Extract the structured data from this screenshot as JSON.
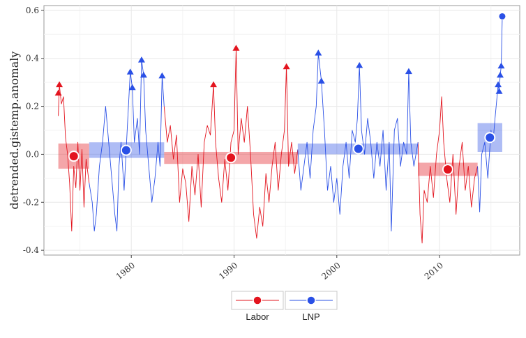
{
  "chart_data": {
    "type": "line",
    "title": "",
    "xlabel": "",
    "ylabel": "detrended.gistemp.anomaly",
    "xlim": [
      1971.5,
      2017.8
    ],
    "ylim": [
      -0.42,
      0.62
    ],
    "x_ticks": [
      1980,
      1990,
      2000,
      2010
    ],
    "x_tick_labels": [
      "1980",
      "1990",
      "2000",
      "2010"
    ],
    "y_ticks": [
      -0.4,
      -0.2,
      0.0,
      0.2,
      0.4,
      0.6
    ],
    "y_tick_labels": [
      "-0.4",
      "-0.2",
      "0.0",
      "0.2",
      "0.4",
      "0.6"
    ],
    "grid": true,
    "legend_position": "bottom",
    "legend": [
      {
        "label": "Labor",
        "color": "#e3141e"
      },
      {
        "label": "LNP",
        "color": "#2a50e6"
      }
    ],
    "periods": [
      {
        "party": "Labor",
        "start": 1972.9,
        "end": 1975.9,
        "mean": -0.008,
        "mean_x": 1974.4,
        "band": [
          -0.06,
          0.045
        ]
      },
      {
        "party": "LNP",
        "start": 1975.9,
        "end": 1983.2,
        "mean": 0.017,
        "mean_x": 1979.5,
        "band": [
          -0.015,
          0.05
        ]
      },
      {
        "party": "Labor",
        "start": 1983.2,
        "end": 1996.2,
        "mean": -0.014,
        "mean_x": 1989.7,
        "band": [
          -0.04,
          0.01
        ]
      },
      {
        "party": "LNP",
        "start": 1996.2,
        "end": 2007.9,
        "mean": 0.023,
        "mean_x": 2002.1,
        "band": [
          0.0,
          0.045
        ]
      },
      {
        "party": "Labor",
        "start": 2007.9,
        "end": 2013.7,
        "mean": -0.063,
        "mean_x": 2010.8,
        "band": [
          -0.09,
          -0.035
        ]
      },
      {
        "party": "LNP",
        "start": 2013.7,
        "end": 2016.1,
        "mean": 0.07,
        "mean_x": 2014.9,
        "band": [
          0.01,
          0.13
        ]
      }
    ],
    "peaks": [
      {
        "party": "Labor",
        "x": 1973.0,
        "y": 0.29
      },
      {
        "party": "Labor",
        "x": 1972.9,
        "y": 0.255
      },
      {
        "party": "LNP",
        "x": 1979.9,
        "y": 0.343
      },
      {
        "party": "LNP",
        "x": 1980.1,
        "y": 0.278
      },
      {
        "party": "LNP",
        "x": 1981.0,
        "y": 0.393
      },
      {
        "party": "LNP",
        "x": 1981.2,
        "y": 0.33
      },
      {
        "party": "LNP",
        "x": 1983.0,
        "y": 0.327
      },
      {
        "party": "Labor",
        "x": 1988.0,
        "y": 0.29
      },
      {
        "party": "Labor",
        "x": 1990.2,
        "y": 0.442
      },
      {
        "party": "Labor",
        "x": 1995.1,
        "y": 0.365
      },
      {
        "party": "LNP",
        "x": 1998.2,
        "y": 0.422
      },
      {
        "party": "LNP",
        "x": 1998.5,
        "y": 0.305
      },
      {
        "party": "LNP",
        "x": 2002.2,
        "y": 0.37
      },
      {
        "party": "LNP",
        "x": 2007.0,
        "y": 0.345
      },
      {
        "party": "LNP",
        "x": 2015.7,
        "y": 0.29
      },
      {
        "party": "LNP",
        "x": 2015.8,
        "y": 0.262
      },
      {
        "party": "LNP",
        "x": 2015.9,
        "y": 0.33
      },
      {
        "party": "LNP",
        "x": 2016.0,
        "y": 0.368
      },
      {
        "party": "LNP",
        "x": 2016.1,
        "y": 0.575
      }
    ],
    "series": [
      {
        "name": "Labor",
        "color": "#e3141e",
        "segments": [
          [
            [
              1972.9,
              0.16
            ],
            [
              1973.0,
              0.29
            ],
            [
              1973.2,
              0.21
            ],
            [
              1973.4,
              0.24
            ],
            [
              1973.6,
              0.07
            ],
            [
              1973.8,
              0.0
            ],
            [
              1974.0,
              -0.12
            ],
            [
              1974.2,
              -0.32
            ],
            [
              1974.4,
              -0.05
            ],
            [
              1974.6,
              -0.14
            ],
            [
              1974.8,
              0.05
            ],
            [
              1975.0,
              -0.15
            ],
            [
              1975.2,
              0.02
            ],
            [
              1975.4,
              -0.22
            ],
            [
              1975.6,
              -0.02
            ],
            [
              1975.9,
              -0.12
            ]
          ],
          [
            [
              1983.2,
              0.2
            ],
            [
              1983.5,
              0.05
            ],
            [
              1983.8,
              0.12
            ],
            [
              1984.1,
              -0.02
            ],
            [
              1984.4,
              0.08
            ],
            [
              1984.7,
              -0.2
            ],
            [
              1985.0,
              -0.06
            ],
            [
              1985.3,
              -0.12
            ],
            [
              1985.6,
              -0.28
            ],
            [
              1985.9,
              -0.05
            ],
            [
              1986.2,
              -0.17
            ],
            [
              1986.5,
              0.0
            ],
            [
              1986.8,
              -0.22
            ],
            [
              1987.1,
              0.05
            ],
            [
              1987.4,
              0.12
            ],
            [
              1987.7,
              0.08
            ],
            [
              1988.0,
              0.29
            ],
            [
              1988.2,
              0.05
            ],
            [
              1988.5,
              -0.1
            ],
            [
              1988.8,
              -0.2
            ],
            [
              1989.1,
              -0.02
            ],
            [
              1989.4,
              -0.15
            ],
            [
              1989.7,
              0.05
            ],
            [
              1990.0,
              0.1
            ],
            [
              1990.2,
              0.442
            ],
            [
              1990.4,
              0.0
            ],
            [
              1990.7,
              0.15
            ],
            [
              1991.0,
              0.05
            ],
            [
              1991.3,
              0.2
            ],
            [
              1991.6,
              0.0
            ],
            [
              1991.9,
              -0.25
            ],
            [
              1992.2,
              -0.35
            ],
            [
              1992.5,
              -0.22
            ],
            [
              1992.8,
              -0.3
            ],
            [
              1993.1,
              -0.08
            ],
            [
              1993.4,
              -0.2
            ],
            [
              1993.7,
              -0.05
            ],
            [
              1994.0,
              0.05
            ],
            [
              1994.3,
              -0.15
            ],
            [
              1994.6,
              0.0
            ],
            [
              1994.9,
              0.1
            ],
            [
              1995.1,
              0.365
            ],
            [
              1995.3,
              -0.05
            ],
            [
              1995.6,
              0.05
            ],
            [
              1995.9,
              -0.08
            ],
            [
              1996.2,
              0.02
            ]
          ],
          [
            [
              2007.9,
              0.05
            ],
            [
              2008.1,
              -0.25
            ],
            [
              2008.3,
              -0.37
            ],
            [
              2008.5,
              -0.15
            ],
            [
              2008.8,
              -0.2
            ],
            [
              2009.1,
              -0.05
            ],
            [
              2009.4,
              -0.18
            ],
            [
              2009.7,
              0.0
            ],
            [
              2010.0,
              0.1
            ],
            [
              2010.2,
              0.24
            ],
            [
              2010.4,
              0.05
            ],
            [
              2010.7,
              -0.1
            ],
            [
              2011.0,
              -0.2
            ],
            [
              2011.3,
              0.0
            ],
            [
              2011.6,
              -0.25
            ],
            [
              2011.9,
              -0.05
            ],
            [
              2012.2,
              0.05
            ],
            [
              2012.5,
              -0.15
            ],
            [
              2012.8,
              -0.05
            ],
            [
              2013.1,
              -0.22
            ],
            [
              2013.4,
              -0.1
            ],
            [
              2013.7,
              -0.05
            ]
          ]
        ]
      },
      {
        "name": "LNP",
        "color": "#2a50e6",
        "segments": [
          [
            [
              1975.9,
              -0.12
            ],
            [
              1976.2,
              -0.2
            ],
            [
              1976.4,
              -0.32
            ],
            [
              1976.6,
              -0.25
            ],
            [
              1976.9,
              -0.05
            ],
            [
              1977.2,
              0.05
            ],
            [
              1977.5,
              0.2
            ],
            [
              1977.8,
              0.05
            ],
            [
              1978.1,
              -0.1
            ],
            [
              1978.4,
              -0.25
            ],
            [
              1978.6,
              -0.32
            ],
            [
              1978.8,
              -0.05
            ],
            [
              1979.0,
              0.05
            ],
            [
              1979.3,
              -0.15
            ],
            [
              1979.6,
              0.1
            ],
            [
              1979.9,
              0.343
            ],
            [
              1980.1,
              0.278
            ],
            [
              1980.3,
              0.05
            ],
            [
              1980.6,
              0.15
            ],
            [
              1980.8,
              0.0
            ],
            [
              1981.0,
              0.393
            ],
            [
              1981.2,
              0.33
            ],
            [
              1981.4,
              0.1
            ],
            [
              1981.7,
              -0.05
            ],
            [
              1982.0,
              -0.2
            ],
            [
              1982.3,
              -0.1
            ],
            [
              1982.6,
              0.05
            ],
            [
              1982.8,
              -0.05
            ],
            [
              1983.0,
              0.327
            ],
            [
              1983.2,
              0.2
            ]
          ],
          [
            [
              1996.2,
              0.02
            ],
            [
              1996.5,
              -0.15
            ],
            [
              1996.8,
              -0.05
            ],
            [
              1997.1,
              0.05
            ],
            [
              1997.4,
              -0.1
            ],
            [
              1997.7,
              0.1
            ],
            [
              1998.0,
              0.2
            ],
            [
              1998.2,
              0.422
            ],
            [
              1998.5,
              0.305
            ],
            [
              1998.8,
              0.1
            ],
            [
              1999.1,
              -0.15
            ],
            [
              1999.4,
              -0.05
            ],
            [
              1999.7,
              -0.2
            ],
            [
              2000.0,
              -0.1
            ],
            [
              2000.3,
              -0.25
            ],
            [
              2000.6,
              -0.05
            ],
            [
              2000.9,
              0.05
            ],
            [
              2001.2,
              -0.1
            ],
            [
              2001.5,
              0.1
            ],
            [
              2001.8,
              0.05
            ],
            [
              2002.0,
              0.15
            ],
            [
              2002.2,
              0.37
            ],
            [
              2002.4,
              0.1
            ],
            [
              2002.7,
              0.0
            ],
            [
              2003.0,
              0.15
            ],
            [
              2003.3,
              0.05
            ],
            [
              2003.6,
              -0.1
            ],
            [
              2003.9,
              0.05
            ],
            [
              2004.2,
              -0.05
            ],
            [
              2004.5,
              0.1
            ],
            [
              2004.8,
              -0.15
            ],
            [
              2005.1,
              0.05
            ],
            [
              2005.3,
              -0.32
            ],
            [
              2005.6,
              0.1
            ],
            [
              2005.9,
              0.15
            ],
            [
              2006.2,
              -0.05
            ],
            [
              2006.5,
              0.05
            ],
            [
              2006.8,
              0.0
            ],
            [
              2007.0,
              0.345
            ],
            [
              2007.2,
              0.05
            ],
            [
              2007.5,
              -0.05
            ],
            [
              2007.9,
              0.05
            ]
          ],
          [
            [
              2013.7,
              -0.05
            ],
            [
              2013.9,
              -0.24
            ],
            [
              2014.1,
              0.0
            ],
            [
              2014.4,
              0.05
            ],
            [
              2014.7,
              -0.1
            ],
            [
              2015.0,
              0.1
            ],
            [
              2015.2,
              0.05
            ],
            [
              2015.4,
              0.15
            ],
            [
              2015.7,
              0.29
            ],
            [
              2015.8,
              0.262
            ],
            [
              2015.9,
              0.33
            ],
            [
              2016.0,
              0.368
            ],
            [
              2016.1,
              0.575
            ]
          ]
        ]
      }
    ]
  }
}
